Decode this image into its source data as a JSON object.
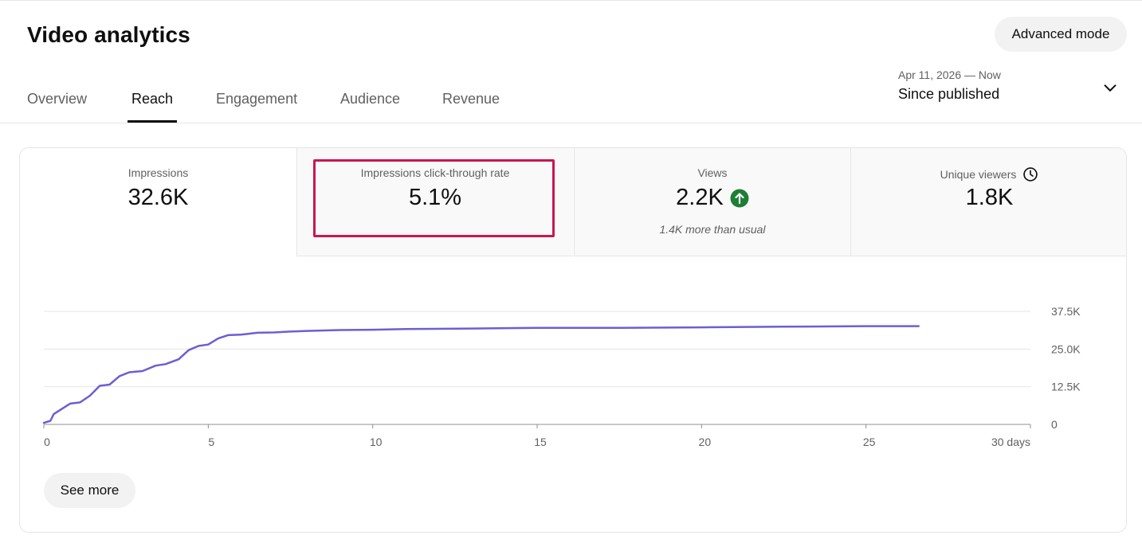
{
  "header": {
    "title": "Video analytics",
    "advanced_mode_label": "Advanced mode"
  },
  "tabs": [
    {
      "label": "Overview",
      "active": false
    },
    {
      "label": "Reach",
      "active": true
    },
    {
      "label": "Engagement",
      "active": false
    },
    {
      "label": "Audience",
      "active": false
    },
    {
      "label": "Revenue",
      "active": false
    }
  ],
  "date_picker": {
    "range": "Apr 11, 2026 — Now",
    "label": "Since published",
    "icon": "chevron-down-icon"
  },
  "metrics": [
    {
      "label": "Impressions",
      "value": "32.6K",
      "selected": true
    },
    {
      "label": "Impressions click-through rate",
      "value": "5.1%",
      "highlighted": true
    },
    {
      "label": "Views",
      "value": "2.2K",
      "badge_icon": "arrow-up-circle-icon",
      "note": "1.4K more than usual"
    },
    {
      "label": "Unique viewers",
      "value": "1.8K",
      "label_icon": "clock-icon"
    }
  ],
  "colors": {
    "line": "#6b5fd3",
    "highlight": "#c8174f",
    "up_badge": "#1e7e34"
  },
  "chart_data": {
    "type": "line",
    "xlim": [
      0,
      30
    ],
    "ylim": [
      0,
      37500
    ],
    "x_ticks": [
      0,
      5,
      10,
      15,
      20,
      25,
      30
    ],
    "x_tick_labels": [
      "0",
      "5",
      "10",
      "15",
      "20",
      "25",
      "30 days"
    ],
    "y_ticks": [
      0,
      12500,
      25000,
      37500
    ],
    "y_tick_labels": [
      "0",
      "12.5K",
      "25.0K",
      "37.5K"
    ],
    "grid": true,
    "series": [
      {
        "x": [
          0,
          0.2,
          0.3,
          0.5,
          0.8,
          1.1,
          1.4,
          1.7,
          2.0,
          2.3,
          2.6,
          3.0,
          3.4,
          3.7,
          4.1,
          4.4,
          4.7,
          5.0,
          5.3,
          5.6,
          6.0,
          6.5,
          7.0,
          7.5,
          8.0,
          9.0,
          10.0,
          11.0,
          13.0,
          15.0,
          17.5,
          20.0,
          22.5,
          25.0,
          26.6
        ],
        "y": [
          500,
          1200,
          3400,
          4800,
          6900,
          7300,
          9500,
          12800,
          13200,
          16000,
          17300,
          17700,
          19500,
          20000,
          21600,
          24600,
          26000,
          26500,
          28500,
          29600,
          29800,
          30400,
          30500,
          30800,
          31000,
          31300,
          31400,
          31600,
          31800,
          32000,
          32000,
          32200,
          32400,
          32600,
          32600
        ]
      }
    ]
  },
  "footer": {
    "see_more_label": "See more"
  }
}
